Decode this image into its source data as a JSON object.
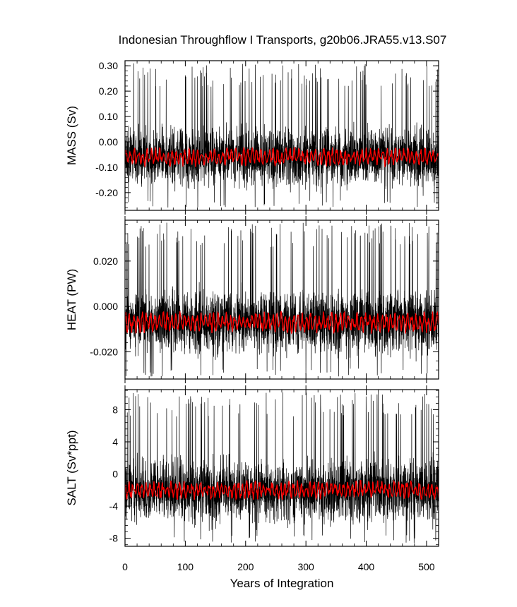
{
  "title": "Indonesian Throughflow I Transports, g20b06.JRA55.v13.S07",
  "xlabel": "Years of Integration",
  "colors": {
    "raw": "#000000",
    "smoothed": "#ff0000"
  },
  "chart_data": [
    {
      "type": "line",
      "name": "mass",
      "ylabel": "MASS (Sv)",
      "xlim": [
        0,
        520
      ],
      "ylim": [
        -0.27,
        0.32
      ],
      "xticks": [
        "0",
        "100",
        "200",
        "300",
        "400",
        "500"
      ],
      "yticks": [
        {
          "v": -0.2,
          "label": "-0.20"
        },
        {
          "v": -0.1,
          "label": "-0.10"
        },
        {
          "v": 0.0,
          "label": "0.00"
        },
        {
          "v": 0.1,
          "label": "0.10"
        },
        {
          "v": 0.2,
          "label": "0.20"
        },
        {
          "v": 0.3,
          "label": "0.30"
        }
      ],
      "minor_step": 0.02,
      "raw_series": {
        "mean": -0.06,
        "amplitude_p95": 0.16,
        "max": 0.31,
        "min": -0.26
      },
      "smoothed_series": {
        "mean": -0.06,
        "range": [
          -0.1,
          -0.02
        ]
      }
    },
    {
      "type": "line",
      "name": "heat",
      "ylabel": "HEAT (PW)",
      "xlim": [
        0,
        520
      ],
      "ylim": [
        -0.032,
        0.038
      ],
      "xticks": [
        "0",
        "100",
        "200",
        "300",
        "400",
        "500"
      ],
      "yticks": [
        {
          "v": -0.02,
          "label": "-0.020"
        },
        {
          "v": 0.0,
          "label": "0.000"
        },
        {
          "v": 0.02,
          "label": "0.020"
        }
      ],
      "minor_step": 0.004,
      "raw_series": {
        "mean": -0.007,
        "amplitude_p95": 0.019,
        "max": 0.037,
        "min": -0.031
      },
      "smoothed_series": {
        "mean": -0.007,
        "range": [
          -0.012,
          -0.002
        ]
      }
    },
    {
      "type": "line",
      "name": "salt",
      "ylabel": "SALT (Sv*ppt)",
      "xlim": [
        0,
        520
      ],
      "ylim": [
        -9,
        10.5
      ],
      "xticks": [
        "0",
        "100",
        "200",
        "300",
        "400",
        "500"
      ],
      "yticks": [
        {
          "v": -8,
          "label": "-8"
        },
        {
          "v": -4,
          "label": "-4"
        },
        {
          "v": 0,
          "label": "0"
        },
        {
          "v": 4,
          "label": "4"
        },
        {
          "v": 8,
          "label": "8"
        }
      ],
      "minor_step": 0.8,
      "raw_series": {
        "mean": -2,
        "amplitude_p95": 5.5,
        "max": 10.2,
        "min": -8.6
      },
      "smoothed_series": {
        "mean": -2,
        "range": [
          -3.2,
          -0.6
        ]
      }
    }
  ]
}
